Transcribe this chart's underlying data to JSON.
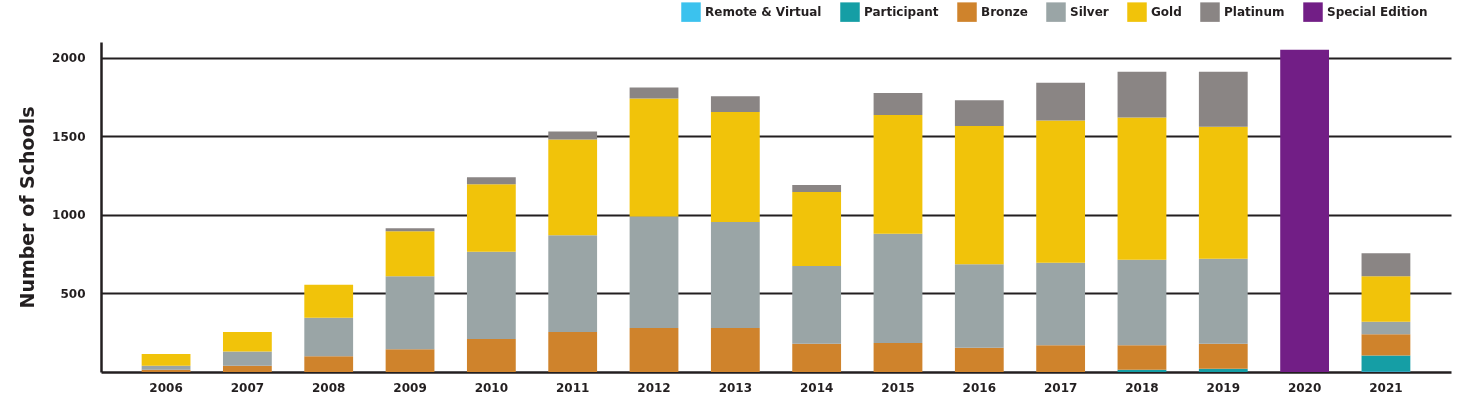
{
  "chart_data": {
    "type": "bar",
    "ylabel": "Number of Schools",
    "stacked": true,
    "categories": [
      "2006",
      "2007",
      "2008",
      "2009",
      "2010",
      "2011",
      "2012",
      "2013",
      "2014",
      "2015",
      "2016",
      "2017",
      "2018",
      "2019",
      "2020",
      "2021"
    ],
    "series": [
      {
        "name": "Remote & Virtual",
        "color": "#3bc2ee",
        "values": [
          null,
          null,
          null,
          null,
          null,
          null,
          null,
          null,
          null,
          null,
          null,
          null,
          null,
          null,
          null,
          5
        ]
      },
      {
        "name": "Participant",
        "color": "#159ea5",
        "values": [
          null,
          null,
          null,
          null,
          null,
          null,
          null,
          null,
          null,
          null,
          null,
          null,
          15,
          20,
          null,
          100
        ]
      },
      {
        "name": "Bronze",
        "color": "#cf832c",
        "values": [
          15,
          40,
          100,
          145,
          210,
          255,
          280,
          280,
          180,
          185,
          155,
          170,
          155,
          160,
          null,
          135
        ]
      },
      {
        "name": "Silver",
        "color": "#9aa5a6",
        "values": [
          25,
          90,
          245,
          465,
          555,
          615,
          710,
          675,
          495,
          695,
          530,
          525,
          545,
          540,
          null,
          80
        ]
      },
      {
        "name": "Gold",
        "color": "#f1c30a",
        "values": [
          75,
          125,
          210,
          285,
          430,
          610,
          750,
          700,
          470,
          755,
          880,
          905,
          905,
          840,
          null,
          290
        ]
      },
      {
        "name": "Platinum",
        "color": "#8a8584",
        "values": [
          null,
          null,
          null,
          20,
          45,
          50,
          70,
          100,
          45,
          140,
          165,
          240,
          290,
          350,
          null,
          145
        ]
      },
      {
        "name": "Special Edition",
        "color": "#721e86",
        "values": [
          null,
          null,
          null,
          null,
          null,
          null,
          null,
          null,
          null,
          null,
          null,
          null,
          null,
          null,
          2050,
          null
        ]
      }
    ],
    "ylim": [
      0,
      2100
    ],
    "yticks": [
      500,
      1000,
      1500,
      2000
    ],
    "grid": "y",
    "legend": "top right"
  }
}
